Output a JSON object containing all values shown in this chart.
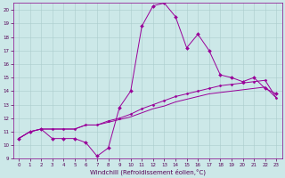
{
  "xlabel": "Windchill (Refroidissement éolien,°C)",
  "bg_color": "#cce8e8",
  "grid_color": "#aacccc",
  "line_color": "#990099",
  "x_ticks": [
    0,
    1,
    2,
    3,
    4,
    5,
    6,
    7,
    8,
    9,
    10,
    11,
    12,
    13,
    14,
    15,
    16,
    17,
    18,
    19,
    20,
    21,
    22,
    23
  ],
  "y_ticks": [
    9,
    10,
    11,
    12,
    13,
    14,
    15,
    16,
    17,
    18,
    19,
    20
  ],
  "xlim": [
    -0.5,
    23.5
  ],
  "ylim": [
    9.0,
    20.5
  ],
  "line1_x": [
    0,
    1,
    2,
    3,
    4,
    5,
    6,
    7,
    8,
    9,
    10,
    11,
    12,
    13,
    14,
    15,
    16,
    17,
    18,
    19,
    20,
    21,
    22,
    23
  ],
  "line1_y": [
    10.5,
    11.0,
    11.2,
    10.5,
    10.5,
    10.5,
    10.2,
    9.2,
    9.8,
    12.8,
    14.0,
    18.8,
    20.3,
    20.5,
    19.5,
    17.2,
    18.2,
    17.0,
    15.2,
    15.0,
    14.7,
    15.0,
    14.2,
    13.8
  ],
  "line2_x": [
    0,
    1,
    2,
    3,
    4,
    5,
    6,
    7,
    8,
    9,
    10,
    11,
    12,
    13,
    14,
    15,
    16,
    17,
    18,
    19,
    20,
    21,
    22,
    23
  ],
  "line2_y": [
    10.5,
    11.0,
    11.2,
    11.2,
    11.2,
    11.2,
    11.5,
    11.5,
    11.8,
    12.0,
    12.3,
    12.7,
    13.0,
    13.3,
    13.6,
    13.8,
    14.0,
    14.2,
    14.4,
    14.5,
    14.6,
    14.7,
    14.8,
    13.5
  ],
  "line3_x": [
    0,
    1,
    2,
    3,
    4,
    5,
    6,
    7,
    8,
    9,
    10,
    11,
    12,
    13,
    14,
    15,
    16,
    17,
    18,
    19,
    20,
    21,
    22,
    23
  ],
  "line3_y": [
    10.5,
    11.0,
    11.2,
    11.2,
    11.2,
    11.2,
    11.5,
    11.5,
    11.7,
    11.9,
    12.1,
    12.4,
    12.7,
    12.9,
    13.2,
    13.4,
    13.6,
    13.8,
    13.9,
    14.0,
    14.1,
    14.2,
    14.3,
    13.5
  ],
  "marker_size1": 2.0,
  "marker_size2": 1.5,
  "linewidth": 0.7,
  "tick_fontsize": 4.0,
  "xlabel_fontsize": 5.0
}
